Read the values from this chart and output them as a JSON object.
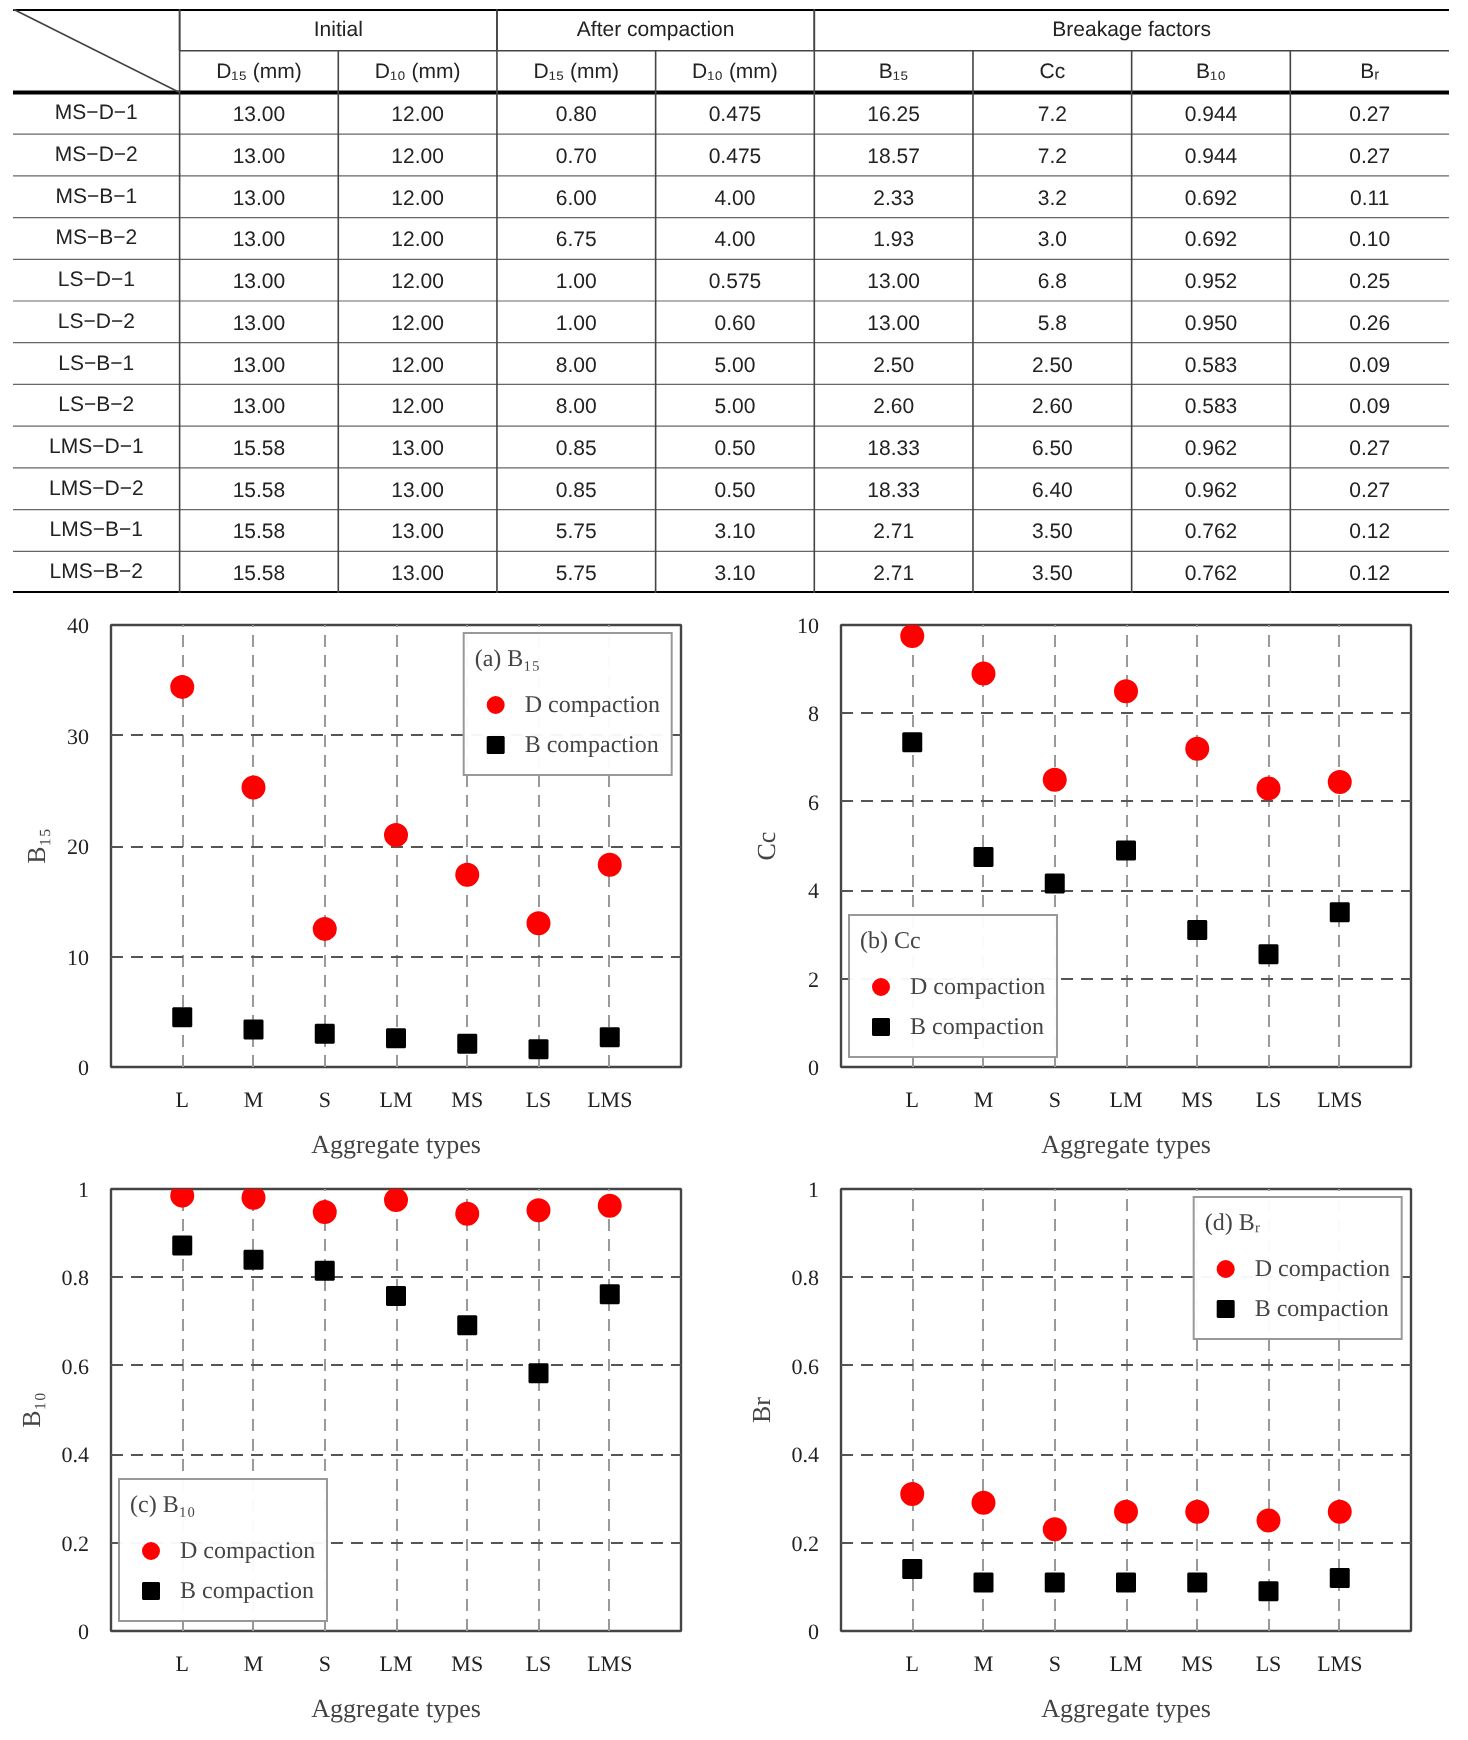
{
  "chart_data": [
    {
      "type": "other",
      "categories": [
        "D₁₅ (mm)",
        "D₁₀ (mm)",
        "D₁₅ (mm)",
        "D₁₀ (mm)",
        "B₁₅",
        "Cc",
        "B₁₀",
        "Bᵣ"
      ],
      "annotations": [
        "Initial",
        "After compaction",
        "Breakage factors"
      ],
      "y_categories": [
        "MS−D−1",
        "MS−D−2",
        "MS−B−1",
        "MS−B−2",
        "LS−D−1",
        "LS−D−2",
        "LS−B−1",
        "LS−B−2",
        "LMS−D−1",
        "LMS−D−2",
        "LMS−B−1",
        "LMS−B−2"
      ],
      "cell_labels": [
        [
          "13.00",
          "12.00",
          "0.80",
          "0.475",
          "16.25",
          "7.2",
          "0.944",
          "0.27"
        ],
        [
          "13.00",
          "12.00",
          "0.70",
          "0.475",
          "18.57",
          "7.2",
          "0.944",
          "0.27"
        ],
        [
          "13.00",
          "12.00",
          "6.00",
          "4.00",
          "2.33",
          "3.2",
          "0.692",
          "0.11"
        ],
        [
          "13.00",
          "12.00",
          "6.75",
          "4.00",
          "1.93",
          "3.0",
          "0.692",
          "0.10"
        ],
        [
          "13.00",
          "12.00",
          "1.00",
          "0.575",
          "13.00",
          "6.8",
          "0.952",
          "0.25"
        ],
        [
          "13.00",
          "12.00",
          "1.00",
          "0.60",
          "13.00",
          "5.8",
          "0.950",
          "0.26"
        ],
        [
          "13.00",
          "12.00",
          "8.00",
          "5.00",
          "2.50",
          "2.50",
          "0.583",
          "0.09"
        ],
        [
          "13.00",
          "12.00",
          "8.00",
          "5.00",
          "2.60",
          "2.60",
          "0.583",
          "0.09"
        ],
        [
          "15.58",
          "13.00",
          "0.85",
          "0.50",
          "18.33",
          "6.50",
          "0.962",
          "0.27"
        ],
        [
          "15.58",
          "13.00",
          "0.85",
          "0.50",
          "18.33",
          "6.40",
          "0.962",
          "0.27"
        ],
        [
          "15.58",
          "13.00",
          "5.75",
          "3.10",
          "2.71",
          "3.50",
          "0.762",
          "0.12"
        ],
        [
          "15.58",
          "13.00",
          "5.75",
          "3.10",
          "2.71",
          "3.50",
          "0.762",
          "0.12"
        ]
      ]
    },
    {
      "type": "scatter",
      "legend_title": "(a) B₁₅",
      "xlabel": "Aggregate types",
      "ylabel": "B₁₅",
      "categories": [
        "L",
        "M",
        "S",
        "LM",
        "MS",
        "LS",
        "LMS"
      ],
      "ylim": [
        0,
        40
      ],
      "yticks": [
        0,
        10,
        20,
        30,
        40
      ],
      "grid": true,
      "legend": "top right",
      "series": [
        {
          "name": "D compaction",
          "color": "#ff0000",
          "marker": "circle",
          "values": [
            34.4,
            25.3,
            12.5,
            21.0,
            17.4,
            13.0,
            18.3
          ]
        },
        {
          "name": "B compaction",
          "color": "#000000",
          "marker": "square",
          "values": [
            4.5,
            3.4,
            3.0,
            2.6,
            2.1,
            1.6,
            2.7
          ]
        }
      ]
    },
    {
      "type": "scatter",
      "legend_title": "(b) Cc",
      "xlabel": "Aggregate types",
      "ylabel": "Cc",
      "categories": [
        "L",
        "M",
        "S",
        "LM",
        "MS",
        "LS",
        "LMS"
      ],
      "ylim": [
        0,
        10
      ],
      "yticks": [
        0,
        2,
        4,
        6,
        8,
        10
      ],
      "grid": true,
      "legend": "bottom left",
      "series": [
        {
          "name": "D compaction",
          "color": "#ff0000",
          "marker": "circle",
          "values": [
            9.75,
            8.9,
            6.5,
            8.5,
            7.2,
            6.3,
            6.45
          ]
        },
        {
          "name": "B compaction",
          "color": "#000000",
          "marker": "square",
          "values": [
            7.35,
            4.75,
            4.15,
            4.9,
            3.1,
            2.55,
            3.5
          ]
        }
      ]
    },
    {
      "type": "scatter",
      "legend_title": "(c) B₁₀",
      "xlabel": "Aggregate types",
      "ylabel": "B₁₀",
      "categories": [
        "L",
        "M",
        "S",
        "LM",
        "MS",
        "LS",
        "LMS"
      ],
      "ylim": [
        0,
        1
      ],
      "yticks": [
        0,
        0.2,
        0.4,
        0.6,
        0.8,
        1
      ],
      "grid": true,
      "legend": "bottom left",
      "series": [
        {
          "name": "D compaction",
          "color": "#ff0000",
          "marker": "circle",
          "values": [
            0.985,
            0.98,
            0.948,
            0.975,
            0.944,
            0.952,
            0.962
          ]
        },
        {
          "name": "B compaction",
          "color": "#000000",
          "marker": "square",
          "values": [
            0.872,
            0.84,
            0.815,
            0.758,
            0.692,
            0.583,
            0.762
          ]
        }
      ]
    },
    {
      "type": "scatter",
      "legend_title": "(d) Bᵣ",
      "xlabel": "Aggregate types",
      "ylabel": "Br",
      "categories": [
        "L",
        "M",
        "S",
        "LM",
        "MS",
        "LS",
        "LMS"
      ],
      "ylim": [
        0,
        1
      ],
      "yticks": [
        0,
        0.2,
        0.4,
        0.6,
        0.8,
        1
      ],
      "grid": true,
      "legend": "top right",
      "series": [
        {
          "name": "D compaction",
          "color": "#ff0000",
          "marker": "circle",
          "values": [
            0.31,
            0.29,
            0.23,
            0.27,
            0.27,
            0.25,
            0.27
          ]
        },
        {
          "name": "B compaction",
          "color": "#000000",
          "marker": "square",
          "values": [
            0.14,
            0.11,
            0.11,
            0.11,
            0.11,
            0.09,
            0.12
          ]
        }
      ]
    }
  ]
}
